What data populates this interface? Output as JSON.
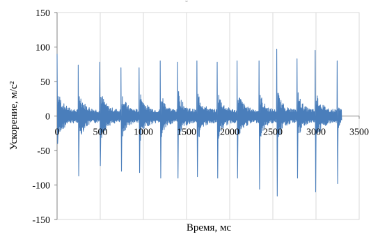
{
  "chart_data": {
    "type": "line",
    "title": "",
    "xlabel": "Время, мс",
    "ylabel": "Ускорение, м/с²",
    "xlim": [
      0,
      3500
    ],
    "ylim": [
      -150,
      150
    ],
    "x_ticks": [
      0,
      500,
      1000,
      1500,
      2000,
      2500,
      3000,
      3500
    ],
    "y_ticks": [
      -150,
      -100,
      -50,
      0,
      50,
      100,
      150
    ],
    "x_tick_labels": [
      "0",
      "500",
      "1000",
      "1500",
      "2000",
      "2500",
      "3000",
      "3500"
    ],
    "y_tick_labels": [
      "-150",
      "-100",
      "-50",
      "0",
      "50",
      "100",
      "150"
    ],
    "grid": {
      "x": true,
      "y": false
    },
    "legend": "none",
    "line_color": "#4a7ebb",
    "axis_color": "#808080",
    "top_mark": "˘",
    "series": [
      {
        "name": "",
        "points": [
          [
            0,
            90
          ],
          [
            5,
            -38
          ],
          [
            30,
            30
          ],
          [
            60,
            -15
          ],
          [
            120,
            10
          ],
          [
            200,
            -10
          ],
          [
            245,
            74
          ],
          [
            255,
            -87
          ],
          [
            300,
            25
          ],
          [
            400,
            -10
          ],
          [
            450,
            10
          ],
          [
            495,
            78
          ],
          [
            505,
            -72
          ],
          [
            550,
            25
          ],
          [
            650,
            -10
          ],
          [
            740,
            70
          ],
          [
            750,
            -80
          ],
          [
            800,
            25
          ],
          [
            900,
            -10
          ],
          [
            950,
            70
          ],
          [
            960,
            -82
          ],
          [
            1000,
            25
          ],
          [
            1100,
            -10
          ],
          [
            1195,
            80
          ],
          [
            1205,
            -90
          ],
          [
            1250,
            25
          ],
          [
            1350,
            -10
          ],
          [
            1395,
            78
          ],
          [
            1405,
            -90
          ],
          [
            1450,
            25
          ],
          [
            1550,
            -10
          ],
          [
            1620,
            80
          ],
          [
            1630,
            -88
          ],
          [
            1680,
            25
          ],
          [
            1780,
            -10
          ],
          [
            1855,
            78
          ],
          [
            1865,
            -90
          ],
          [
            1910,
            25
          ],
          [
            2010,
            -10
          ],
          [
            2085,
            80
          ],
          [
            2095,
            -90
          ],
          [
            2150,
            25
          ],
          [
            2250,
            -10
          ],
          [
            2340,
            80
          ],
          [
            2350,
            -106
          ],
          [
            2400,
            30
          ],
          [
            2500,
            -10
          ],
          [
            2545,
            97
          ],
          [
            2555,
            -116
          ],
          [
            2600,
            30
          ],
          [
            2700,
            -10
          ],
          [
            2780,
            83
          ],
          [
            2790,
            -90
          ],
          [
            2840,
            25
          ],
          [
            2940,
            -10
          ],
          [
            2990,
            95
          ],
          [
            3000,
            -110
          ],
          [
            3050,
            30
          ],
          [
            3150,
            -10
          ],
          [
            3245,
            80
          ],
          [
            3255,
            -98
          ],
          [
            3300,
            20
          ]
        ]
      }
    ]
  }
}
